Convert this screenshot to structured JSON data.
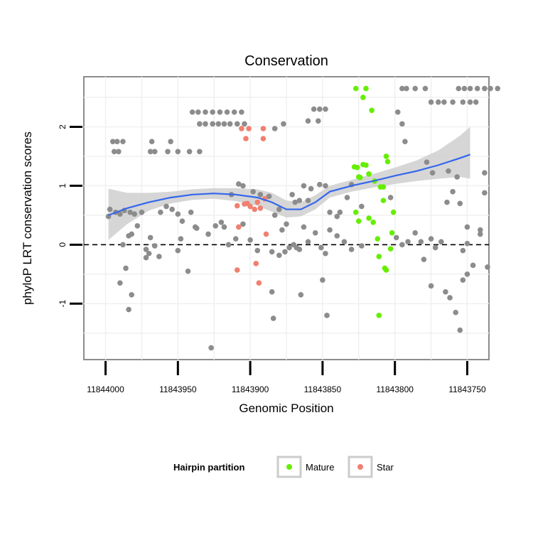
{
  "chart_data": {
    "type": "scatter",
    "title": "Conservation",
    "xlabel": "Genomic Position",
    "ylabel": "phyloP LRT conservation scores",
    "x_reversed": true,
    "xlim": [
      11844015,
      11843735
    ],
    "ylim": [
      -1.95,
      2.85
    ],
    "x_ticks": [
      11844000,
      11843950,
      11843900,
      11843850,
      11843800,
      11843750
    ],
    "x_tick_labels": [
      "11844000",
      "11843950",
      "11843900",
      "11843850",
      "11843800",
      "11843750"
    ],
    "y_ticks": [
      -1,
      0,
      1,
      2
    ],
    "y_tick_labels": [
      "-1",
      "0",
      "1",
      "2"
    ],
    "grid": true,
    "reference_line": {
      "y": 0,
      "style": "dashed"
    },
    "legend": {
      "title": "Hairpin partition",
      "placement": "bottom",
      "entries": [
        {
          "name": "Mature",
          "color": "#66ee00"
        },
        {
          "name": "Star",
          "color": "#f08070"
        }
      ]
    },
    "colors": {
      "other": "#8c8c8c",
      "mature": "#66ee00",
      "star": "#f08070",
      "smooth": "#3366ee",
      "band": "#cfcfcf"
    },
    "smooth": {
      "x": [
        11843998,
        11843985,
        11843970,
        11843955,
        11843940,
        11843925,
        11843910,
        11843895,
        11843885,
        11843875,
        11843865,
        11843855,
        11843845,
        11843830,
        11843815,
        11843800,
        11843785,
        11843770,
        11843755,
        11843748
      ],
      "y": [
        0.5,
        0.62,
        0.72,
        0.8,
        0.85,
        0.87,
        0.85,
        0.8,
        0.72,
        0.6,
        0.6,
        0.72,
        0.9,
        1.0,
        1.08,
        1.17,
        1.25,
        1.35,
        1.47,
        1.53
      ],
      "lower": [
        0.08,
        0.35,
        0.58,
        0.7,
        0.76,
        0.78,
        0.74,
        0.66,
        0.56,
        0.46,
        0.48,
        0.6,
        0.8,
        0.9,
        0.97,
        1.03,
        1.08,
        1.12,
        1.15,
        1.12
      ],
      "upper": [
        0.95,
        0.88,
        0.88,
        0.9,
        0.94,
        0.96,
        0.96,
        0.94,
        0.88,
        0.75,
        0.72,
        0.84,
        1.0,
        1.1,
        1.2,
        1.31,
        1.43,
        1.6,
        1.85,
        2.0
      ]
    },
    "series": [
      {
        "name": "Mature",
        "color": "#66ee00",
        "points": [
          [
            11843827,
            2.65
          ],
          [
            11843820,
            2.65
          ],
          [
            11843822,
            2.5
          ],
          [
            11843816,
            2.28
          ],
          [
            11843828,
            1.32
          ],
          [
            11843826,
            1.31
          ],
          [
            11843822,
            1.36
          ],
          [
            11843820,
            1.35
          ],
          [
            11843818,
            1.2
          ],
          [
            11843825,
            1.15
          ],
          [
            11843824,
            1.14
          ],
          [
            11843814,
            1.08
          ],
          [
            11843810,
            0.98
          ],
          [
            11843806,
            1.5
          ],
          [
            11843805,
            1.41
          ],
          [
            11843808,
            0.75
          ],
          [
            11843827,
            0.55
          ],
          [
            11843825,
            0.4
          ],
          [
            11843818,
            0.45
          ],
          [
            11843815,
            0.38
          ],
          [
            11843812,
            0.1
          ],
          [
            11843811,
            -0.2
          ],
          [
            11843807,
            -0.4
          ],
          [
            11843806,
            -0.43
          ],
          [
            11843803,
            -0.07
          ],
          [
            11843802,
            0.2
          ],
          [
            11843801,
            0.55
          ],
          [
            11843811,
            -1.2
          ],
          [
            11843808,
            0.98
          ]
        ]
      },
      {
        "name": "Star",
        "color": "#f08070",
        "points": [
          [
            11843906,
            1.97
          ],
          [
            11843901,
            1.97
          ],
          [
            11843891,
            1.97
          ],
          [
            11843903,
            1.8
          ],
          [
            11843891,
            1.8
          ],
          [
            11843902,
            0.7
          ],
          [
            11843900,
            0.65
          ],
          [
            11843895,
            0.72
          ],
          [
            11843890,
            0.78
          ],
          [
            11843893,
            0.62
          ],
          [
            11843897,
            0.6
          ],
          [
            11843909,
            0.66
          ],
          [
            11843904,
            0.69
          ],
          [
            11843908,
            0.3
          ],
          [
            11843889,
            0.18
          ],
          [
            11843909,
            -0.43
          ],
          [
            11843896,
            -0.32
          ],
          [
            11843894,
            -0.65
          ]
        ]
      },
      {
        "name": "",
        "color": "#8c8c8c",
        "points": [
          [
            11843995,
            1.75
          ],
          [
            11843992,
            1.75
          ],
          [
            11843988,
            1.75
          ],
          [
            11843994,
            1.58
          ],
          [
            11843991,
            1.58
          ],
          [
            11843968,
            1.75
          ],
          [
            11843955,
            1.75
          ],
          [
            11843969,
            1.58
          ],
          [
            11843966,
            1.58
          ],
          [
            11843957,
            1.58
          ],
          [
            11843950,
            1.58
          ],
          [
            11843942,
            1.58
          ],
          [
            11843935,
            1.58
          ],
          [
            11843940,
            2.25
          ],
          [
            11843936,
            2.25
          ],
          [
            11843931,
            2.25
          ],
          [
            11843926,
            2.25
          ],
          [
            11843921,
            2.25
          ],
          [
            11843916,
            2.25
          ],
          [
            11843911,
            2.25
          ],
          [
            11843906,
            2.25
          ],
          [
            11843935,
            2.05
          ],
          [
            11843931,
            2.05
          ],
          [
            11843926,
            2.05
          ],
          [
            11843922,
            2.05
          ],
          [
            11843918,
            2.05
          ],
          [
            11843914,
            2.05
          ],
          [
            11843909,
            2.05
          ],
          [
            11843904,
            2.05
          ],
          [
            11843883,
            1.97
          ],
          [
            11843877,
            2.05
          ],
          [
            11843860,
            2.1
          ],
          [
            11843853,
            2.1
          ],
          [
            11843856,
            2.3
          ],
          [
            11843852,
            2.3
          ],
          [
            11843848,
            2.3
          ],
          [
            11843795,
            2.65
          ],
          [
            11843792,
            2.65
          ],
          [
            11843786,
            2.65
          ],
          [
            11843779,
            2.65
          ],
          [
            11843775,
            2.42
          ],
          [
            11843770,
            2.42
          ],
          [
            11843766,
            2.42
          ],
          [
            11843760,
            2.42
          ],
          [
            11843756,
            2.65
          ],
          [
            11843752,
            2.65
          ],
          [
            11843748,
            2.65
          ],
          [
            11843743,
            2.65
          ],
          [
            11843738,
            2.65
          ],
          [
            11843734,
            2.65
          ],
          [
            11843729,
            2.65
          ],
          [
            11843753,
            2.42
          ],
          [
            11843748,
            2.42
          ],
          [
            11843744,
            2.42
          ],
          [
            11843798,
            2.25
          ],
          [
            11843795,
            2.05
          ],
          [
            11843793,
            1.75
          ],
          [
            11843778,
            1.4
          ],
          [
            11843774,
            1.22
          ],
          [
            11843763,
            1.25
          ],
          [
            11843757,
            1.15
          ],
          [
            11843738,
            1.22
          ],
          [
            11843755,
            0.7
          ],
          [
            11843750,
            0.3
          ],
          [
            11843741,
            0.18
          ],
          [
            11843738,
            0.88
          ],
          [
            11843998,
            0.48
          ],
          [
            11843997,
            0.6
          ],
          [
            11843993,
            0.55
          ],
          [
            11843990,
            0.52
          ],
          [
            11843987,
            0.58
          ],
          [
            11843983,
            0.55
          ],
          [
            11843980,
            0.52
          ],
          [
            11843984,
            0.15
          ],
          [
            11843982,
            0.18
          ],
          [
            11843988,
            0.0
          ],
          [
            11843986,
            -0.4
          ],
          [
            11843978,
            0.32
          ],
          [
            11843975,
            0.55
          ],
          [
            11843972,
            -0.22
          ],
          [
            11843970,
            -0.15
          ],
          [
            11843969,
            0.12
          ],
          [
            11843966,
            -0.02
          ],
          [
            11843962,
            0.55
          ],
          [
            11843958,
            0.65
          ],
          [
            11843954,
            0.6
          ],
          [
            11843950,
            0.52
          ],
          [
            11843947,
            0.4
          ],
          [
            11843941,
            0.55
          ],
          [
            11843938,
            0.3
          ],
          [
            11843924,
            0.32
          ],
          [
            11843918,
            0.3
          ],
          [
            11843913,
            0.85
          ],
          [
            11843908,
            1.03
          ],
          [
            11843905,
            1.0
          ],
          [
            11843898,
            0.9
          ],
          [
            11843893,
            0.85
          ],
          [
            11843887,
            0.82
          ],
          [
            11843880,
            0.6
          ],
          [
            11843878,
            0.25
          ],
          [
            11843875,
            0.35
          ],
          [
            11843871,
            0.85
          ],
          [
            11843869,
            0.72
          ],
          [
            11843866,
            0.75
          ],
          [
            11843863,
            1.0
          ],
          [
            11843860,
            0.75
          ],
          [
            11843858,
            0.95
          ],
          [
            11843852,
            1.02
          ],
          [
            11843848,
            1.0
          ],
          [
            11843845,
            0.55
          ],
          [
            11843840,
            0.48
          ],
          [
            11843838,
            0.55
          ],
          [
            11843833,
            0.8
          ],
          [
            11843830,
            1.02
          ],
          [
            11843823,
            0.65
          ],
          [
            11843803,
            0.8
          ],
          [
            11843799,
            0.12
          ],
          [
            11843795,
            0.0
          ],
          [
            11843791,
            0.05
          ],
          [
            11843786,
            0.2
          ],
          [
            11843782,
            0.05
          ],
          [
            11843780,
            -0.25
          ],
          [
            11843775,
            0.1
          ],
          [
            11843772,
            -0.05
          ],
          [
            11843768,
            0.05
          ],
          [
            11843764,
            0.72
          ],
          [
            11843760,
            0.9
          ],
          [
            11843753,
            -0.1
          ],
          [
            11843750,
            0.02
          ],
          [
            11843746,
            -0.35
          ],
          [
            11843741,
            0.25
          ],
          [
            11843990,
            -0.65
          ],
          [
            11843972,
            -0.08
          ],
          [
            11843963,
            -0.2
          ],
          [
            11843948,
            0.1
          ],
          [
            11843937,
            0.28
          ],
          [
            11843929,
            0.18
          ],
          [
            11843920,
            0.38
          ],
          [
            11843915,
            0.0
          ],
          [
            11843910,
            0.1
          ],
          [
            11843905,
            0.35
          ],
          [
            11843900,
            0.08
          ],
          [
            11843895,
            -0.1
          ],
          [
            11843885,
            -0.12
          ],
          [
            11843880,
            -0.18
          ],
          [
            11843873,
            -0.05
          ],
          [
            11843866,
            -0.08
          ],
          [
            11843860,
            0.05
          ],
          [
            11843855,
            0.2
          ],
          [
            11843851,
            -0.05
          ],
          [
            11843848,
            -0.15
          ],
          [
            11843845,
            0.25
          ],
          [
            11843840,
            0.15
          ],
          [
            11843835,
            0.05
          ],
          [
            11843830,
            -0.08
          ],
          [
            11843823,
            -0.02
          ],
          [
            11843775,
            -0.7
          ],
          [
            11843765,
            -0.8
          ],
          [
            11843762,
            -0.9
          ],
          [
            11843758,
            -1.15
          ],
          [
            11843755,
            -1.45
          ],
          [
            11843753,
            -0.6
          ],
          [
            11843750,
            -0.5
          ],
          [
            11843736,
            -0.38
          ],
          [
            11843984,
            -1.1
          ],
          [
            11843982,
            -0.85
          ],
          [
            11843950,
            -0.1
          ],
          [
            11843943,
            -0.45
          ],
          [
            11843927,
            -1.75
          ],
          [
            11843885,
            -0.8
          ],
          [
            11843884,
            -1.25
          ],
          [
            11843865,
            -0.85
          ],
          [
            11843850,
            -0.6
          ],
          [
            11843847,
            -1.2
          ],
          [
            11843883,
            0.5
          ],
          [
            11843876,
            -0.12
          ],
          [
            11843870,
            0.0
          ],
          [
            11843868,
            -0.05
          ],
          [
            11843863,
            0.3
          ]
        ]
      }
    ]
  }
}
